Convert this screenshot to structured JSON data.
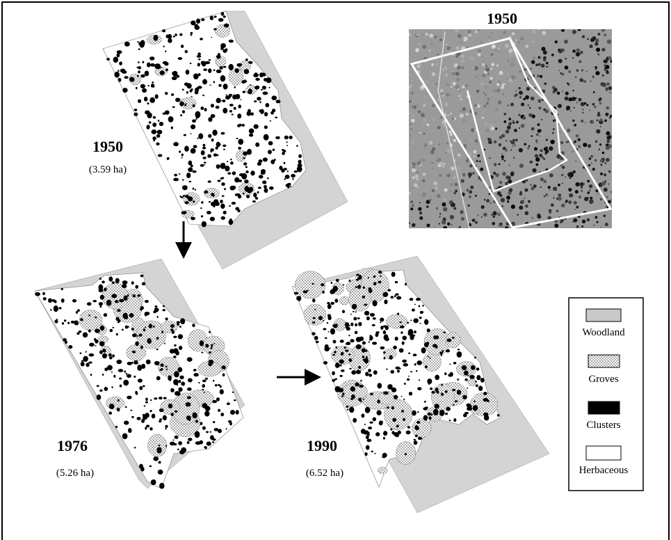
{
  "panels": [
    {
      "year": "1950",
      "area": "(3.59 ha)"
    },
    {
      "year": "1976",
      "area": "(5.26 ha)"
    },
    {
      "year": "1990",
      "area": "(6.52 ha)"
    }
  ],
  "photo": {
    "title": "1950"
  },
  "legend": [
    "Woodland",
    "Groves",
    "Clusters",
    "Herbaceous"
  ]
}
